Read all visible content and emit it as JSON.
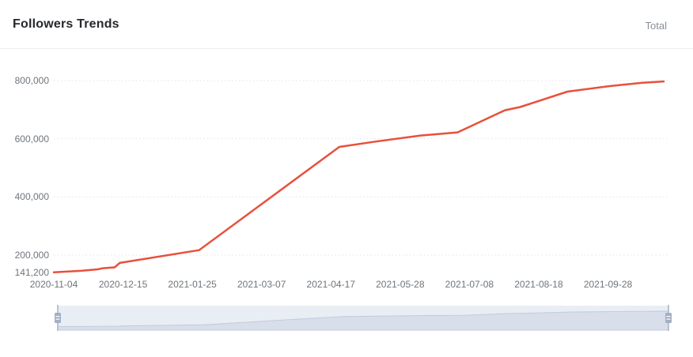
{
  "header": {
    "title": "Followers Trends",
    "range_label": "Total"
  },
  "chart_data": {
    "type": "line",
    "title": "Followers Trends",
    "legend_entries": [
      "Total"
    ],
    "legend_position": "top-right",
    "grid": "dotted-horizontal",
    "has_datazoom_slider": true,
    "x_range": [
      "2020-11-04",
      "2021-10-31"
    ],
    "y_range": [
      141200,
      800000
    ],
    "x_tick_labels": [
      "2020-11-04",
      "2020-12-15",
      "2021-01-25",
      "2021-03-07",
      "2021-04-17",
      "2021-05-28",
      "2021-07-08",
      "2021-08-18",
      "2021-09-28"
    ],
    "y_ticks": [
      {
        "label": "141,200",
        "value": 141200,
        "gridline": false
      },
      {
        "label": "200,000",
        "value": 200000,
        "gridline": true
      },
      {
        "label": "400,000",
        "value": 400000,
        "gridline": true
      },
      {
        "label": "600,000",
        "value": 600000,
        "gridline": true
      },
      {
        "label": "800,000",
        "value": 800000,
        "gridline": true
      }
    ],
    "series": [
      {
        "name": "Total",
        "color": "#e8503c",
        "points": [
          {
            "date": "2020-11-04",
            "value": 141200
          },
          {
            "date": "2020-11-20",
            "value": 146000
          },
          {
            "date": "2020-11-30",
            "value": 151000
          },
          {
            "date": "2020-12-03",
            "value": 155000
          },
          {
            "date": "2020-12-10",
            "value": 158000
          },
          {
            "date": "2020-12-13",
            "value": 173000
          },
          {
            "date": "2021-01-29",
            "value": 217000
          },
          {
            "date": "2021-04-22",
            "value": 572000
          },
          {
            "date": "2021-05-12",
            "value": 589000
          },
          {
            "date": "2021-06-09",
            "value": 611000
          },
          {
            "date": "2021-07-01",
            "value": 622000
          },
          {
            "date": "2021-07-29",
            "value": 698000
          },
          {
            "date": "2021-08-07",
            "value": 709000
          },
          {
            "date": "2021-09-04",
            "value": 762000
          },
          {
            "date": "2021-09-29",
            "value": 781000
          },
          {
            "date": "2021-10-18",
            "value": 792000
          },
          {
            "date": "2021-10-31",
            "value": 797000
          }
        ]
      }
    ]
  },
  "colors": {
    "line": "#e8503c",
    "title_text": "#26282b",
    "axis_text": "#6f757b",
    "total_text": "#8a9199",
    "divider": "#ececec",
    "gridline": "#e3e3e3",
    "slider_bg": "#e9edf4",
    "slider_area_fill": "#d8deea",
    "slider_area_line": "#c2ccdc",
    "slider_handle": "#a3b0c4",
    "slider_handle_line": "#aab6c9",
    "background": "#ffffff"
  }
}
